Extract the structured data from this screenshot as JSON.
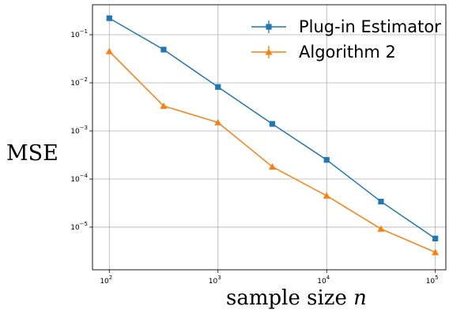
{
  "chart_data": {
    "type": "line",
    "x_scale": "log",
    "y_scale": "log",
    "xlim": [
      70,
      125000
    ],
    "ylim": [
      1.3e-06,
      0.42
    ],
    "grid": true,
    "legend_position": "top-right",
    "ylabel": "MSE",
    "xlabel_text": "sample size ",
    "xlabel_var": "n",
    "x_ticks": [
      100,
      1000,
      10000,
      100000
    ],
    "x_tick_labels": [
      {
        "base": "10",
        "exp": "2"
      },
      {
        "base": "10",
        "exp": "3"
      },
      {
        "base": "10",
        "exp": "4"
      },
      {
        "base": "10",
        "exp": "5"
      }
    ],
    "y_ticks": [
      0.1,
      0.01,
      0.001,
      0.0001,
      1e-05
    ],
    "y_tick_labels": [
      {
        "base": "10",
        "exp": "−1"
      },
      {
        "base": "10",
        "exp": "−2"
      },
      {
        "base": "10",
        "exp": "−3"
      },
      {
        "base": "10",
        "exp": "−4"
      },
      {
        "base": "10",
        "exp": "−5"
      }
    ],
    "x": [
      100,
      316,
      1000,
      3162,
      10000,
      31623,
      100000
    ],
    "series": [
      {
        "name": "Plug-in Estimator",
        "color": "#1f77b4",
        "marker": "square",
        "values": [
          0.22,
          0.049,
          0.0082,
          0.0014,
          0.00025,
          3.4e-05,
          5.8e-06
        ]
      },
      {
        "name": "Algorithm 2",
        "color": "#ff7f0e",
        "marker": "triangle",
        "values": [
          0.045,
          0.0033,
          0.0015,
          0.00018,
          4.5e-05,
          9.2e-06,
          3e-06
        ]
      }
    ]
  }
}
